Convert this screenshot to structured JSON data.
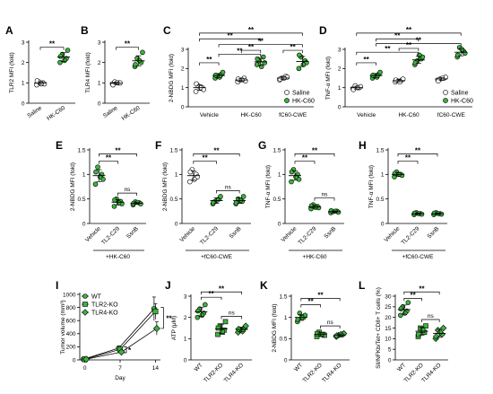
{
  "colors": {
    "green": "#3cb43c",
    "white": "#ffffff",
    "black": "#000000"
  },
  "chart_data": [
    {
      "id": "A",
      "type": "scatter",
      "ylabel": "TLR2 MFI (fold)",
      "ylim": [
        0,
        3
      ],
      "yticks": [
        0,
        1,
        2,
        3
      ],
      "categories": [
        "Saline",
        "HK-C60"
      ],
      "groups": [
        {
          "cat": "Saline",
          "fill": "white",
          "values": [
            0.9,
            1.0,
            1.05,
            0.95,
            1.1,
            0.95
          ]
        },
        {
          "cat": "HK-C60",
          "fill": "green",
          "values": [
            2.0,
            2.2,
            2.4,
            2.6,
            2.3,
            2.1
          ]
        }
      ],
      "brackets": [
        {
          "from": 0,
          "to": 1,
          "y": 2.75,
          "label": "**"
        }
      ]
    },
    {
      "id": "B",
      "type": "scatter",
      "ylabel": "TLR4 MFI (fold)",
      "ylim": [
        0,
        3
      ],
      "yticks": [
        0,
        1,
        2,
        3
      ],
      "categories": [
        "Saline",
        "HK-C60"
      ],
      "groups": [
        {
          "cat": "Saline",
          "fill": "white",
          "values": [
            0.95,
            1.0,
            1.05,
            1.0,
            0.9,
            1.0
          ]
        },
        {
          "cat": "HK-C60",
          "fill": "green",
          "values": [
            1.8,
            2.0,
            2.2,
            2.5,
            1.9,
            2.1
          ]
        }
      ],
      "brackets": [
        {
          "from": 0,
          "to": 1,
          "y": 2.75,
          "label": "**"
        }
      ]
    },
    {
      "id": "C",
      "type": "scatter",
      "ylabel": "2-NBDG MFI (fold)",
      "ylim": [
        0,
        3
      ],
      "yticks": [
        0,
        1,
        2,
        3
      ],
      "categories": [
        "Vehicle",
        "HK-C60",
        "fC60-CWE"
      ],
      "legend": {
        "entries": [
          "Saline",
          "HK-C60"
        ],
        "position": "lower-right"
      },
      "groups": [
        {
          "cat": "Vehicle",
          "offset": -1,
          "fill": "white",
          "values": [
            0.8,
            1.0,
            1.1,
            0.9,
            1.2,
            1.0
          ]
        },
        {
          "cat": "Vehicle",
          "offset": 1,
          "fill": "green",
          "values": [
            1.5,
            1.7,
            1.6,
            1.8,
            1.65,
            1.55
          ]
        },
        {
          "cat": "HK-C60",
          "offset": -1,
          "fill": "white",
          "values": [
            1.3,
            1.5,
            1.4,
            1.35,
            1.45,
            1.4
          ]
        },
        {
          "cat": "HK-C60",
          "offset": 1,
          "fill": "green",
          "values": [
            2.2,
            2.6,
            2.4,
            2.3,
            2.5,
            2.1
          ]
        },
        {
          "cat": "fC60-CWE",
          "offset": -1,
          "fill": "white",
          "values": [
            1.4,
            1.6,
            1.5,
            1.55,
            1.45,
            1.5
          ]
        },
        {
          "cat": "fC60-CWE",
          "offset": 1,
          "fill": "green",
          "values": [
            2.0,
            2.4,
            2.6,
            2.3,
            2.7,
            2.2
          ]
        }
      ],
      "brackets": [
        {
          "from": 0,
          "to": 1,
          "y": 2.3,
          "label": "**"
        },
        {
          "from": 1,
          "to": 3,
          "y": 2.75,
          "label": "**"
        },
        {
          "from": 2,
          "to": 3,
          "y": 2.95,
          "label": "**"
        },
        {
          "from": 1,
          "to": 5,
          "y": 3.25,
          "label": "**"
        },
        {
          "from": 4,
          "to": 5,
          "y": 2.95,
          "label": "**"
        },
        {
          "from": 0,
          "to": 3,
          "y": 3.55,
          "label": "**"
        },
        {
          "from": 0,
          "to": 5,
          "y": 3.85,
          "label": "**"
        }
      ]
    },
    {
      "id": "D",
      "type": "scatter",
      "ylabel": "TNF-α MFI (fold)",
      "ylim": [
        0,
        3
      ],
      "yticks": [
        0,
        1,
        2,
        3
      ],
      "categories": [
        "Vehicle",
        "HK-C60",
        "fC60-CWE"
      ],
      "legend": {
        "entries": [
          "Saline",
          "HK-C60"
        ],
        "position": "lower-right"
      },
      "groups": [
        {
          "cat": "Vehicle",
          "offset": -1,
          "fill": "white",
          "values": [
            0.95,
            1.0,
            1.1,
            1.05,
            0.9,
            1.0
          ]
        },
        {
          "cat": "Vehicle",
          "offset": 1,
          "fill": "green",
          "values": [
            1.5,
            1.7,
            1.6,
            1.8,
            1.65,
            1.55
          ]
        },
        {
          "cat": "HK-C60",
          "offset": -1,
          "fill": "white",
          "values": [
            1.3,
            1.4,
            1.35,
            1.45,
            1.4,
            1.3
          ]
        },
        {
          "cat": "HK-C60",
          "offset": 1,
          "fill": "green",
          "values": [
            2.2,
            2.5,
            2.4,
            2.6,
            2.3,
            2.7
          ]
        },
        {
          "cat": "fC60-CWE",
          "offset": -1,
          "fill": "white",
          "values": [
            1.4,
            1.5,
            1.45,
            1.55,
            1.35,
            1.5
          ]
        },
        {
          "cat": "fC60-CWE",
          "offset": 1,
          "fill": "green",
          "values": [
            2.6,
            2.9,
            3.1,
            2.8,
            2.7,
            3.0
          ]
        }
      ],
      "brackets": [
        {
          "from": 0,
          "to": 1,
          "y": 2.3,
          "label": "**"
        },
        {
          "from": 0,
          "to": 3,
          "y": 2.85,
          "label": "**"
        },
        {
          "from": 2,
          "to": 3,
          "y": 3.05,
          "label": "**"
        },
        {
          "from": 1,
          "to": 5,
          "y": 3.3,
          "label": "**"
        },
        {
          "from": 1,
          "to": 3,
          "y": 3.55,
          "label": "**"
        },
        {
          "from": 0,
          "to": 5,
          "y": 3.85,
          "label": "**"
        }
      ]
    },
    {
      "id": "E",
      "type": "scatter",
      "ylabel": "2-NBDG MFI (fold)",
      "ylim": [
        0,
        1.5
      ],
      "yticks": [
        0,
        0.5,
        1,
        1.5
      ],
      "categories": [
        "Vehicle",
        "TL2-C29",
        "SsnB"
      ],
      "group_label": "+HK-C60",
      "groups": [
        {
          "cat": "Vehicle",
          "fill": "green",
          "values": [
            0.8,
            1.0,
            1.15,
            0.9,
            1.05,
            0.95
          ]
        },
        {
          "cat": "TL2-C29",
          "fill": "green",
          "values": [
            0.35,
            0.45,
            0.5,
            0.4,
            0.48,
            0.42
          ]
        },
        {
          "cat": "SsnB",
          "fill": "green",
          "values": [
            0.38,
            0.42,
            0.44,
            0.4,
            0.41,
            0.43
          ]
        }
      ],
      "brackets": [
        {
          "from": 1,
          "to": 2,
          "y": 0.62,
          "label": "ns"
        },
        {
          "from": 0,
          "to": 1,
          "y": 1.27,
          "label": "**"
        },
        {
          "from": 0,
          "to": 2,
          "y": 1.42,
          "label": "**"
        }
      ]
    },
    {
      "id": "F",
      "type": "scatter",
      "ylabel": "2-NBDG MFI (fold)",
      "ylim": [
        0,
        1.5
      ],
      "yticks": [
        0,
        0.5,
        1,
        1.5
      ],
      "categories": [
        "Vehicle",
        "TL2-C29",
        "SsnB"
      ],
      "group_label": "+fC60-CWE",
      "groups": [
        {
          "cat": "Vehicle",
          "fill": "white",
          "values": [
            0.85,
            1.0,
            1.1,
            0.95,
            1.05,
            0.9
          ]
        },
        {
          "cat": "TL2-C29",
          "fill": "green",
          "values": [
            0.4,
            0.5,
            0.45,
            0.55,
            0.42,
            0.48
          ]
        },
        {
          "cat": "SsnB",
          "fill": "green",
          "values": [
            0.4,
            0.45,
            0.5,
            0.55,
            0.42,
            0.47
          ]
        }
      ],
      "brackets": [
        {
          "from": 1,
          "to": 2,
          "y": 0.67,
          "label": "ns"
        },
        {
          "from": 0,
          "to": 1,
          "y": 1.27,
          "label": "**"
        },
        {
          "from": 0,
          "to": 2,
          "y": 1.42,
          "label": "**"
        }
      ]
    },
    {
      "id": "G",
      "type": "scatter",
      "ylabel": "TNF-α MFI (fold)",
      "ylim": [
        0,
        1.5
      ],
      "yticks": [
        0,
        0.5,
        1,
        1.5
      ],
      "categories": [
        "Vehicle",
        "TL2-C29",
        "SsnB"
      ],
      "group_label": "+HK-C60",
      "groups": [
        {
          "cat": "Vehicle",
          "fill": "green",
          "values": [
            0.85,
            1.0,
            1.1,
            0.9,
            1.05,
            0.95
          ]
        },
        {
          "cat": "TL2-C29",
          "fill": "green",
          "values": [
            0.3,
            0.35,
            0.38,
            0.32,
            0.36,
            0.33
          ]
        },
        {
          "cat": "SsnB",
          "fill": "green",
          "values": [
            0.22,
            0.25,
            0.24,
            0.23,
            0.26,
            0.25
          ]
        }
      ],
      "brackets": [
        {
          "from": 1,
          "to": 2,
          "y": 0.52,
          "label": "ns"
        },
        {
          "from": 0,
          "to": 1,
          "y": 1.27,
          "label": "**"
        },
        {
          "from": 0,
          "to": 2,
          "y": 1.42,
          "label": "**"
        }
      ]
    },
    {
      "id": "H",
      "type": "scatter",
      "ylabel": "TNF-α MFI (fold)",
      "ylim": [
        0,
        1.5
      ],
      "yticks": [
        0,
        0.5,
        1,
        1.5
      ],
      "categories": [
        "Vehicle",
        "TL2-C29",
        "SsnB"
      ],
      "group_label": "+fC60-CWE",
      "groups": [
        {
          "cat": "Vehicle",
          "fill": "green",
          "values": [
            0.95,
            1.0,
            1.05,
            0.98,
            1.02,
            1.0
          ]
        },
        {
          "cat": "TL2-C29",
          "fill": "green",
          "values": [
            0.18,
            0.2,
            0.22,
            0.19,
            0.21,
            0.2
          ]
        },
        {
          "cat": "SsnB",
          "fill": "green",
          "values": [
            0.18,
            0.2,
            0.22,
            0.19,
            0.21,
            0.2
          ]
        }
      ],
      "brackets": [
        {
          "from": 0,
          "to": 1,
          "y": 1.27,
          "label": "**"
        },
        {
          "from": 0,
          "to": 2,
          "y": 1.42,
          "label": "**"
        }
      ]
    },
    {
      "id": "I",
      "type": "line",
      "ylabel": "Tumor volume (mm³)",
      "xlabel": "Day",
      "x": [
        0,
        7,
        14
      ],
      "xlim": [
        -1,
        15
      ],
      "ylim": [
        0,
        1000
      ],
      "yticks": [
        0,
        200,
        400,
        600,
        800,
        1000
      ],
      "legend": {
        "entries": [
          "WT",
          "TLR2-KO",
          "TLR4-KO"
        ],
        "position": "top-left"
      },
      "series": [
        {
          "name": "WT",
          "marker": "circle",
          "values": [
            10,
            180,
            780
          ],
          "err": [
            0,
            30,
            180
          ]
        },
        {
          "name": "TLR2-KO",
          "marker": "square",
          "values": [
            10,
            160,
            740
          ],
          "err": [
            0,
            25,
            120
          ]
        },
        {
          "name": "TLR4-KO",
          "marker": "diamond",
          "values": [
            10,
            120,
            480
          ],
          "err": [
            0,
            25,
            100
          ]
        }
      ],
      "annotations": [
        {
          "label": "*",
          "x": 7
        },
        {
          "label": "**",
          "x": 14
        }
      ]
    },
    {
      "id": "J",
      "type": "scatter",
      "ylabel": "ATP (μM)",
      "ylim": [
        0,
        3
      ],
      "yticks": [
        0,
        1,
        2,
        3
      ],
      "categories": [
        "WT",
        "TLR2-KO",
        "TLR4-KO"
      ],
      "groups": [
        {
          "cat": "WT",
          "fill": "green",
          "marker": "circle",
          "values": [
            2.0,
            2.2,
            2.4,
            2.6,
            2.3,
            2.1
          ]
        },
        {
          "cat": "TLR2-KO",
          "fill": "green",
          "marker": "square",
          "values": [
            1.2,
            1.4,
            1.6,
            1.8,
            1.5,
            1.3
          ]
        },
        {
          "cat": "TLR4-KO",
          "fill": "green",
          "marker": "diamond",
          "values": [
            1.3,
            1.5,
            1.4,
            1.6,
            1.45,
            1.35
          ]
        }
      ],
      "brackets": [
        {
          "from": 1,
          "to": 2,
          "y": 2.05,
          "label": "ns"
        },
        {
          "from": 0,
          "to": 1,
          "y": 2.95,
          "label": "**"
        },
        {
          "from": 0,
          "to": 2,
          "y": 3.2,
          "label": "**"
        }
      ]
    },
    {
      "id": "K",
      "type": "scatter",
      "ylabel": "2-NBDG MFI (fold)",
      "ylim": [
        0,
        1.5
      ],
      "yticks": [
        0,
        0.5,
        1,
        1.5
      ],
      "categories": [
        "WT",
        "TLR2-KO",
        "TLR4-KO"
      ],
      "groups": [
        {
          "cat": "WT",
          "fill": "green",
          "marker": "circle",
          "values": [
            0.9,
            1.0,
            1.1,
            1.05,
            0.95,
            1.0
          ]
        },
        {
          "cat": "TLR2-KO",
          "fill": "green",
          "marker": "square",
          "values": [
            0.55,
            0.6,
            0.65,
            0.58,
            0.62,
            0.6
          ]
        },
        {
          "cat": "TLR4-KO",
          "fill": "green",
          "marker": "diamond",
          "values": [
            0.55,
            0.6,
            0.58,
            0.62,
            0.57,
            0.6
          ]
        }
      ],
      "brackets": [
        {
          "from": 1,
          "to": 2,
          "y": 0.8,
          "label": "ns"
        },
        {
          "from": 0,
          "to": 1,
          "y": 1.3,
          "label": "**"
        },
        {
          "from": 0,
          "to": 2,
          "y": 1.45,
          "label": "**"
        }
      ]
    },
    {
      "id": "L",
      "type": "scatter",
      "ylabel": "Sll/NFKb/Tet+ CD8+ T cells (%)",
      "ylim": [
        0,
        30
      ],
      "yticks": [
        0,
        5,
        10,
        15,
        20,
        25,
        30
      ],
      "categories": [
        "WT",
        "TLR2-KO",
        "TLR4-KO"
      ],
      "groups": [
        {
          "cat": "WT",
          "fill": "green",
          "marker": "circle",
          "values": [
            21,
            23,
            25,
            27,
            24,
            22
          ]
        },
        {
          "cat": "TLR2-KO",
          "fill": "green",
          "marker": "square",
          "values": [
            11,
            13,
            15,
            16,
            12,
            14
          ]
        },
        {
          "cat": "TLR4-KO",
          "fill": "green",
          "marker": "diamond",
          "values": [
            10,
            12,
            14,
            15,
            11,
            13
          ]
        }
      ],
      "brackets": [
        {
          "from": 1,
          "to": 2,
          "y": 19,
          "label": "ns"
        },
        {
          "from": 0,
          "to": 1,
          "y": 29,
          "label": "**"
        },
        {
          "from": 0,
          "to": 2,
          "y": 32,
          "label": "**"
        }
      ]
    }
  ]
}
